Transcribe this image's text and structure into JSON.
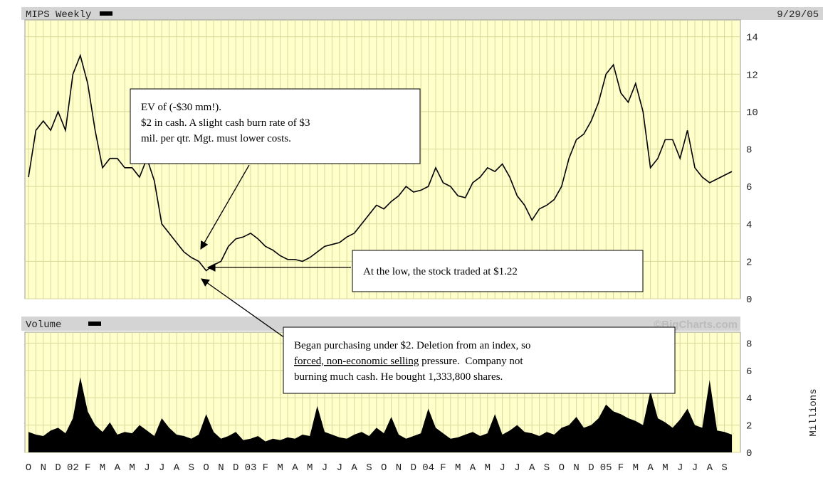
{
  "chart_data": [
    {
      "type": "line",
      "title": "MIPS Weekly",
      "subtitle": "9/29/05",
      "color": "#000000",
      "categories": [
        "O",
        null,
        "N",
        null,
        "D",
        null,
        "02",
        null,
        "F",
        null,
        "M",
        null,
        "A",
        null,
        "M",
        null,
        "J",
        null,
        "J",
        null,
        "A",
        null,
        "S",
        null,
        "O",
        null,
        "N",
        null,
        "D",
        null,
        "03",
        null,
        "F",
        null,
        "M",
        null,
        "A",
        null,
        "M",
        null,
        "J",
        null,
        "J",
        null,
        "A",
        null,
        "S",
        null,
        "O",
        null,
        "N",
        null,
        "D",
        null,
        "04",
        null,
        "F",
        null,
        "M",
        null,
        "A",
        null,
        "M",
        null,
        "J",
        null,
        "J",
        null,
        "A",
        null,
        "S",
        null,
        "O",
        null,
        "N",
        null,
        "D",
        null,
        "05",
        null,
        "F",
        null,
        "M",
        null,
        "A",
        null,
        "M",
        null,
        "J",
        null,
        "J",
        null,
        "A",
        null,
        "S",
        null
      ],
      "values": [
        6.5,
        9,
        9.5,
        9,
        10,
        9,
        12,
        13,
        11.5,
        9,
        7,
        7.5,
        7.5,
        7,
        7,
        6.5,
        7.5,
        6.3,
        4,
        3.5,
        3,
        2.5,
        2.2,
        2,
        1.5,
        1.8,
        2,
        2.8,
        3.2,
        3.3,
        3.5,
        3.2,
        2.8,
        2.6,
        2.3,
        2.1,
        2.1,
        2,
        2.2,
        2.5,
        2.8,
        2.9,
        3,
        3.3,
        3.5,
        4,
        4.5,
        5,
        4.8,
        5.2,
        5.5,
        6,
        5.7,
        5.8,
        6,
        7,
        6.2,
        6,
        5.5,
        5.4,
        6.2,
        6.5,
        7,
        6.8,
        7.2,
        6.5,
        5.5,
        5,
        4.2,
        4.8,
        5,
        5.3,
        6,
        7.5,
        8.5,
        8.8,
        9.5,
        10.5,
        12,
        12.5,
        11,
        10.5,
        11.5,
        10,
        7,
        7.5,
        8.5,
        8.5,
        7.5,
        9,
        7,
        6.5,
        6.2,
        6.4,
        6.6,
        6.8
      ],
      "ylim": [
        0,
        14.9
      ],
      "yticks": [
        0,
        2,
        4,
        6,
        8,
        10,
        12,
        14
      ],
      "grid": true,
      "annotations": [
        {
          "lines": [
            "EV of (-$30 mm!).",
            "$2 in cash.  A slight cash burn rate of $3",
            "mil. per qtr.  Mgt. must lower costs."
          ]
        },
        {
          "lines": [
            "At the low, the stock traded at $1.22"
          ]
        },
        {
          "lines": [
            "Began purchasing under $2.  Deletion from an index, so",
            {
              "underlined": "forced, non-economic selling",
              "rest": " pressure.  Company not"
            },
            "burning much cash. He bought 1,333,800 shares."
          ]
        }
      ]
    },
    {
      "type": "area",
      "title": "Volume",
      "annotation": "©BigCharts.com",
      "y_axis_label": "Millions",
      "color": "#000000",
      "categories": [
        "O",
        null,
        "N",
        null,
        "D",
        null,
        "02",
        null,
        "F",
        null,
        "M",
        null,
        "A",
        null,
        "M",
        null,
        "J",
        null,
        "J",
        null,
        "A",
        null,
        "S",
        null,
        "O",
        null,
        "N",
        null,
        "D",
        null,
        "03",
        null,
        "F",
        null,
        "M",
        null,
        "A",
        null,
        "M",
        null,
        "J",
        null,
        "J",
        null,
        "A",
        null,
        "S",
        null,
        "O",
        null,
        "N",
        null,
        "D",
        null,
        "04",
        null,
        "F",
        null,
        "M",
        null,
        "A",
        null,
        "M",
        null,
        "J",
        null,
        "J",
        null,
        "A",
        null,
        "S",
        null,
        "O",
        null,
        "N",
        null,
        "D",
        null,
        "05",
        null,
        "F",
        null,
        "M",
        null,
        "A",
        null,
        "M",
        null,
        "J",
        null,
        "J",
        null,
        "A",
        null,
        "S",
        null
      ],
      "values": [
        1.5,
        1.3,
        1.2,
        1.6,
        1.8,
        1.4,
        2.5,
        5.5,
        3,
        2,
        1.5,
        2.2,
        1.3,
        1.5,
        1.4,
        2,
        1.6,
        1.2,
        2.5,
        1.8,
        1.3,
        1.2,
        1,
        1.3,
        2.8,
        1.5,
        1,
        1.2,
        1.5,
        0.9,
        1,
        1.2,
        0.8,
        1,
        0.9,
        1.1,
        1,
        1.3,
        1.2,
        3.4,
        1.5,
        1.3,
        1.1,
        1,
        1.3,
        1.5,
        1.2,
        1.8,
        1.4,
        2.6,
        1.3,
        1,
        1.2,
        1.4,
        3.2,
        1.8,
        1.4,
        1,
        1.1,
        1.3,
        1.5,
        1.2,
        1.4,
        2.8,
        1.3,
        1.6,
        2,
        1.5,
        1.4,
        1.2,
        1.5,
        1.3,
        1.8,
        2,
        2.6,
        1.8,
        2,
        2.5,
        3.5,
        3,
        2.8,
        2.5,
        2.3,
        2,
        4.5,
        2.5,
        2.2,
        1.8,
        2.4,
        3.2,
        2,
        1.8,
        5.3,
        1.6,
        1.5,
        1.3
      ],
      "ylim": [
        0,
        8.8
      ],
      "yticks": [
        0,
        2,
        4,
        6,
        8
      ],
      "grid": true
    }
  ]
}
